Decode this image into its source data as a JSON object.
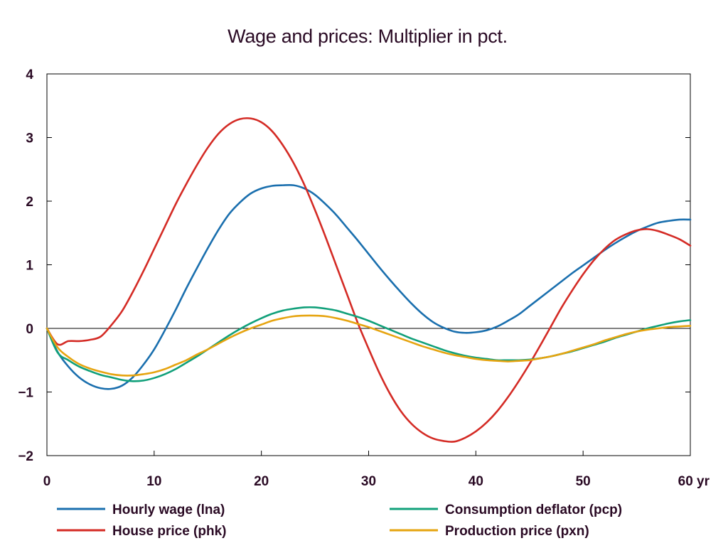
{
  "chart_data": {
    "type": "line",
    "title": "Wage and prices: Multiplier in pct.",
    "x_unit_label": "yr",
    "xlim": [
      0,
      60
    ],
    "ylim": [
      -2,
      4
    ],
    "x_ticks": [
      0,
      10,
      20,
      30,
      40,
      50,
      60
    ],
    "x_tick_labels": [
      "0",
      "10",
      "20",
      "30",
      "40",
      "50",
      "60 yr"
    ],
    "y_ticks": [
      -2,
      -1,
      0,
      1,
      2,
      3,
      4
    ],
    "y_tick_labels": [
      "−2",
      "−1",
      "0",
      "1",
      "2",
      "3",
      "4"
    ],
    "zero_line": true,
    "grid": false,
    "legend_position": "bottom",
    "x": [
      0,
      1,
      2,
      3,
      4,
      5,
      6,
      7,
      8,
      9,
      10,
      11,
      12,
      13,
      14,
      15,
      16,
      17,
      18,
      19,
      20,
      21,
      22,
      23,
      24,
      25,
      26,
      27,
      28,
      29,
      30,
      31,
      32,
      33,
      34,
      35,
      36,
      37,
      38,
      39,
      40,
      41,
      42,
      43,
      44,
      45,
      46,
      47,
      48,
      49,
      50,
      51,
      52,
      53,
      54,
      55,
      56,
      57,
      58,
      59,
      60
    ],
    "series": [
      {
        "name": "Hourly wage (lna)",
        "color": "#1a6fae",
        "values": [
          0,
          -0.37,
          -0.6,
          -0.77,
          -0.88,
          -0.94,
          -0.95,
          -0.9,
          -0.77,
          -0.57,
          -0.33,
          -0.03,
          0.29,
          0.63,
          0.95,
          1.26,
          1.55,
          1.8,
          1.98,
          2.12,
          2.2,
          2.24,
          2.25,
          2.25,
          2.2,
          2.1,
          1.95,
          1.78,
          1.58,
          1.38,
          1.17,
          0.96,
          0.76,
          0.57,
          0.39,
          0.23,
          0.1,
          0.01,
          -0.05,
          -0.07,
          -0.06,
          -0.03,
          0.03,
          0.12,
          0.22,
          0.35,
          0.48,
          0.61,
          0.74,
          0.87,
          0.99,
          1.11,
          1.23,
          1.34,
          1.44,
          1.53,
          1.6,
          1.66,
          1.69,
          1.71,
          1.71
        ]
      },
      {
        "name": "House price (phk)",
        "color": "#d42b25",
        "values": [
          0,
          -0.25,
          -0.2,
          -0.2,
          -0.18,
          -0.13,
          0.05,
          0.27,
          0.57,
          0.9,
          1.25,
          1.6,
          1.95,
          2.27,
          2.57,
          2.84,
          3.06,
          3.21,
          3.29,
          3.3,
          3.24,
          3.1,
          2.88,
          2.6,
          2.26,
          1.86,
          1.43,
          0.98,
          0.53,
          0.08,
          -0.32,
          -0.7,
          -1.03,
          -1.3,
          -1.5,
          -1.64,
          -1.73,
          -1.77,
          -1.78,
          -1.72,
          -1.62,
          -1.48,
          -1.3,
          -1.08,
          -0.83,
          -0.56,
          -0.27,
          0.03,
          0.33,
          0.6,
          0.85,
          1.07,
          1.25,
          1.39,
          1.48,
          1.54,
          1.56,
          1.53,
          1.47,
          1.4,
          1.3
        ]
      },
      {
        "name": "Consumption deflator (pcp)",
        "color": "#11a07a",
        "values": [
          0,
          -0.38,
          -0.5,
          -0.6,
          -0.67,
          -0.73,
          -0.77,
          -0.81,
          -0.83,
          -0.82,
          -0.78,
          -0.72,
          -0.64,
          -0.54,
          -0.44,
          -0.33,
          -0.22,
          -0.11,
          -0.01,
          0.08,
          0.16,
          0.23,
          0.28,
          0.31,
          0.33,
          0.33,
          0.31,
          0.28,
          0.23,
          0.18,
          0.12,
          0.05,
          -0.02,
          -0.09,
          -0.16,
          -0.22,
          -0.28,
          -0.34,
          -0.39,
          -0.43,
          -0.46,
          -0.48,
          -0.5,
          -0.5,
          -0.5,
          -0.49,
          -0.47,
          -0.44,
          -0.4,
          -0.36,
          -0.31,
          -0.26,
          -0.21,
          -0.15,
          -0.1,
          -0.05,
          0.0,
          0.04,
          0.08,
          0.11,
          0.13
        ]
      },
      {
        "name": "Production price (pxn)",
        "color": "#e6a410",
        "values": [
          0,
          -0.3,
          -0.45,
          -0.56,
          -0.63,
          -0.68,
          -0.72,
          -0.74,
          -0.74,
          -0.72,
          -0.69,
          -0.64,
          -0.57,
          -0.5,
          -0.41,
          -0.33,
          -0.24,
          -0.15,
          -0.07,
          0.0,
          0.06,
          0.12,
          0.16,
          0.19,
          0.2,
          0.2,
          0.19,
          0.16,
          0.12,
          0.07,
          0.02,
          -0.04,
          -0.1,
          -0.16,
          -0.22,
          -0.28,
          -0.33,
          -0.38,
          -0.42,
          -0.45,
          -0.48,
          -0.5,
          -0.51,
          -0.52,
          -0.51,
          -0.5,
          -0.47,
          -0.44,
          -0.4,
          -0.35,
          -0.3,
          -0.25,
          -0.19,
          -0.14,
          -0.09,
          -0.05,
          -0.02,
          0.0,
          0.02,
          0.03,
          0.04
        ]
      }
    ]
  }
}
